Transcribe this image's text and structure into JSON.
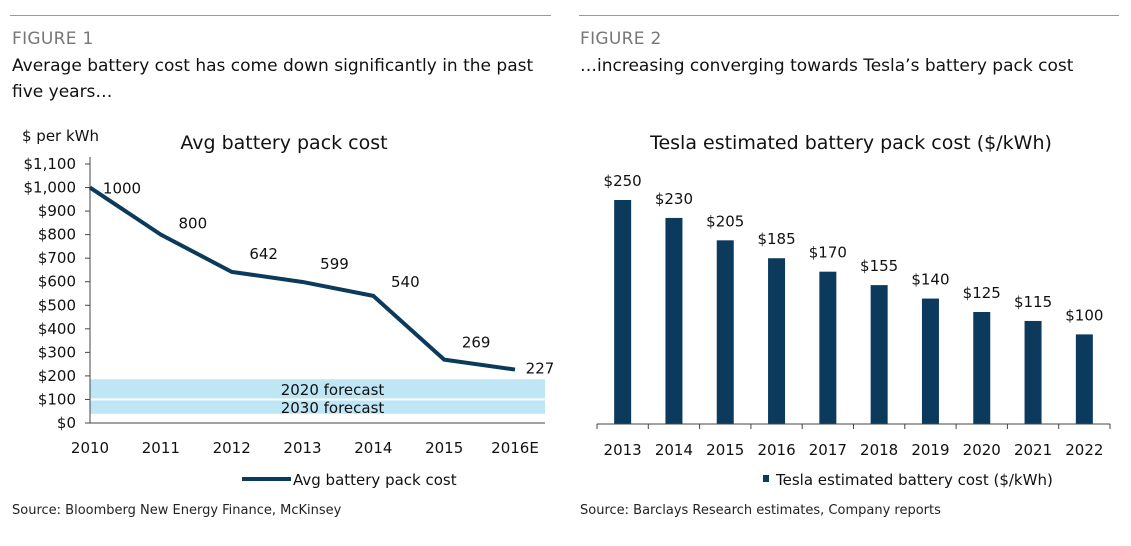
{
  "colors": {
    "navy": "#0c3a5c",
    "band": "#bfe6f5",
    "rule": "#9a9a9a"
  },
  "figure1": {
    "label": "FIGURE 1",
    "title": "Average battery cost has come down significantly in the past five years…",
    "source": "Source: Bloomberg New Energy Finance, McKinsey"
  },
  "figure2": {
    "label": "FIGURE 2",
    "title": "…increasing converging towards Tesla’s battery pack cost",
    "source": "Source: Barclays Research estimates, Company reports"
  },
  "chart_data": [
    {
      "type": "line",
      "title": "Avg battery pack cost",
      "ylabel": "$ per kWh",
      "xlabel": "",
      "categories": [
        "2010",
        "2011",
        "2012",
        "2013",
        "2014",
        "2015",
        "2016E"
      ],
      "series": [
        {
          "name": "Avg battery pack cost",
          "values": [
            1000,
            800,
            642,
            599,
            540,
            269,
            227
          ]
        }
      ],
      "data_labels": [
        "1000",
        "800",
        "642",
        "599",
        "540",
        "269",
        "227"
      ],
      "yticks": [
        0,
        100,
        200,
        300,
        400,
        500,
        600,
        700,
        800,
        900,
        1000,
        1100
      ],
      "ytick_labels": [
        "$0",
        "$100",
        "$200",
        "$300",
        "$400",
        "$500",
        "$600",
        "$700",
        "$800",
        "$900",
        "$1,000",
        "$1,100"
      ],
      "ylim": [
        0,
        1100
      ],
      "bands": [
        {
          "label": "2020 forecast",
          "from": 100,
          "to": 190
        },
        {
          "label": "2030 forecast",
          "from": 35,
          "to": 100
        }
      ],
      "legend": "bottom",
      "grid": false
    },
    {
      "type": "bar",
      "title": "Tesla estimated battery pack cost ($/kWh)",
      "categories": [
        "2013",
        "2014",
        "2015",
        "2016",
        "2017",
        "2018",
        "2019",
        "2020",
        "2021",
        "2022"
      ],
      "series": [
        {
          "name": "Tesla estimated battery cost ($/kWh)",
          "values": [
            250,
            230,
            205,
            185,
            170,
            155,
            140,
            125,
            115,
            100
          ]
        }
      ],
      "data_labels": [
        "$250",
        "$230",
        "$205",
        "$185",
        "$170",
        "$155",
        "$140",
        "$125",
        "$115",
        "$100"
      ],
      "ylim": [
        0,
        280
      ],
      "legend": "bottom",
      "grid": false
    }
  ]
}
